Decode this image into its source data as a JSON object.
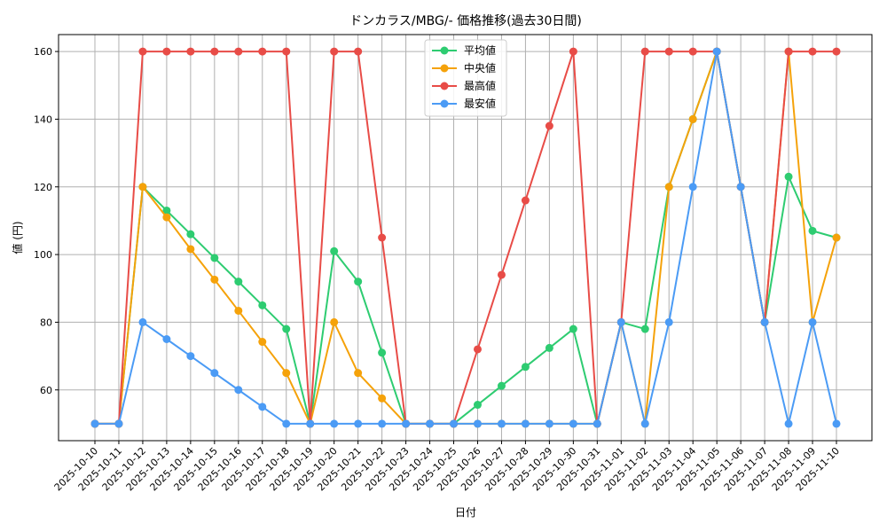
{
  "chart_data": {
    "type": "line",
    "title": "ドンカラス/MBG/- 価格推移(過去30日間)",
    "xlabel": "日付",
    "ylabel": "値 (円)",
    "ylim": [
      45,
      165
    ],
    "yticks": [
      60,
      80,
      100,
      120,
      140,
      160
    ],
    "grid": true,
    "legend_position": "top-center",
    "categories": [
      "2025-10-10",
      "2025-10-11",
      "2025-10-12",
      "2025-10-13",
      "2025-10-14",
      "2025-10-15",
      "2025-10-16",
      "2025-10-17",
      "2025-10-18",
      "2025-10-19",
      "2025-10-20",
      "2025-10-21",
      "2025-10-22",
      "2025-10-23",
      "2025-10-24",
      "2025-10-25",
      "2025-10-26",
      "2025-10-27",
      "2025-10-28",
      "2025-10-29",
      "2025-10-30",
      "2025-10-31",
      "2025-11-01",
      "2025-11-02",
      "2025-11-03",
      "2025-11-04",
      "2025-11-05",
      "2025-11-06",
      "2025-11-07",
      "2025-11-08",
      "2025-11-09",
      "2025-11-10"
    ],
    "series": [
      {
        "name": "平均値",
        "color": "#2ecc71",
        "values": [
          50,
          50,
          120,
          113,
          106,
          99,
          92,
          85,
          78,
          50,
          101,
          92,
          71,
          50,
          50,
          50,
          55.6,
          61.2,
          66.8,
          72.4,
          78,
          50,
          80,
          78,
          120,
          140,
          160,
          120,
          80,
          123,
          107,
          105
        ]
      },
      {
        "name": "中央値",
        "color": "#f5a20a",
        "values": [
          50,
          50,
          120,
          111,
          101.6,
          92.6,
          83.4,
          74.2,
          65,
          50,
          80,
          65,
          57.5,
          50,
          50,
          50,
          50,
          50,
          50,
          50,
          50,
          50,
          80,
          50,
          120,
          140,
          160,
          120,
          80,
          160,
          80,
          105
        ]
      },
      {
        "name": "最高値",
        "color": "#e84c47",
        "values": [
          50,
          50,
          160,
          160,
          160,
          160,
          160,
          160,
          160,
          50,
          160,
          160,
          105,
          50,
          50,
          50,
          72,
          94,
          116,
          138,
          160,
          50,
          80,
          160,
          160,
          160,
          160,
          120,
          80,
          160,
          160,
          160
        ]
      },
      {
        "name": "最安値",
        "color": "#4b9bf5",
        "values": [
          50,
          50,
          80,
          75,
          70,
          65,
          60,
          55,
          50,
          50,
          50,
          50,
          50,
          50,
          50,
          50,
          50,
          50,
          50,
          50,
          50,
          50,
          80,
          50,
          80,
          120,
          160,
          120,
          80,
          50,
          80,
          50
        ]
      }
    ]
  }
}
